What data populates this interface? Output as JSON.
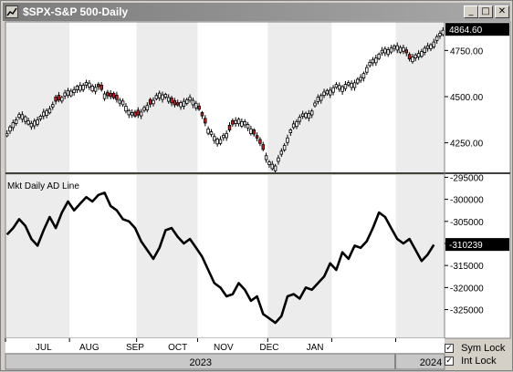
{
  "window": {
    "title": "$SPX-S&P 500-Daily",
    "icon": "chart-window-icon",
    "buttons": {
      "minimize": "_",
      "maximize": "□",
      "close": "✕"
    }
  },
  "colors": {
    "up_candle": "#ffffff",
    "down_candle": "#cc1f1f",
    "line": "#000000",
    "shade_band": "#dcdcdc",
    "plot_bg": "#ffffff",
    "axis_bg": "#ffffff"
  },
  "chart_data": [
    {
      "type": "candlestick",
      "series": [
        {
          "name": "$SPX-S&P 500-Daily"
        }
      ],
      "y_ticks": [
        "4250.00",
        "4500.00",
        "4750.00"
      ],
      "y_tick_values": [
        4250,
        4500,
        4750
      ],
      "ylim": [
        4090,
        4905
      ],
      "last_value_label": "4864.60",
      "last_value": 4864.6,
      "close_path": [
        [
          0,
          4300
        ],
        [
          2,
          4360
        ],
        [
          4,
          4400
        ],
        [
          6,
          4395
        ],
        [
          8,
          4350
        ],
        [
          10,
          4380
        ],
        [
          12,
          4410
        ],
        [
          14,
          4440
        ],
        [
          16,
          4470
        ],
        [
          18,
          4500
        ],
        [
          20,
          4530
        ],
        [
          22,
          4540
        ],
        [
          24,
          4560
        ],
        [
          26,
          4575
        ],
        [
          28,
          4560
        ],
        [
          30,
          4550
        ],
        [
          32,
          4520
        ],
        [
          34,
          4495
        ],
        [
          36,
          4490
        ],
        [
          38,
          4470
        ],
        [
          40,
          4430
        ],
        [
          42,
          4390
        ],
        [
          44,
          4420
        ],
        [
          46,
          4450
        ],
        [
          48,
          4480
        ],
        [
          50,
          4520
        ],
        [
          52,
          4510
        ],
        [
          54,
          4470
        ],
        [
          56,
          4450
        ],
        [
          58,
          4480
        ],
        [
          60,
          4490
        ],
        [
          62,
          4470
        ],
        [
          64,
          4390
        ],
        [
          66,
          4330
        ],
        [
          68,
          4280
        ],
        [
          70,
          4270
        ],
        [
          72,
          4300
        ],
        [
          74,
          4350
        ],
        [
          76,
          4380
        ],
        [
          78,
          4360
        ],
        [
          80,
          4330
        ],
        [
          82,
          4270
        ],
        [
          84,
          4220
        ],
        [
          86,
          4140
        ],
        [
          88,
          4130
        ],
        [
          90,
          4200
        ],
        [
          92,
          4280
        ],
        [
          94,
          4350
        ],
        [
          96,
          4390
        ],
        [
          98,
          4410
        ],
        [
          100,
          4420
        ],
        [
          102,
          4500
        ],
        [
          104,
          4520
        ],
        [
          106,
          4540
        ],
        [
          108,
          4560
        ],
        [
          110,
          4560
        ],
        [
          112,
          4570
        ],
        [
          114,
          4580
        ],
        [
          116,
          4600
        ],
        [
          118,
          4660
        ],
        [
          120,
          4700
        ],
        [
          122,
          4730
        ],
        [
          124,
          4760
        ],
        [
          126,
          4760
        ],
        [
          128,
          4780
        ],
        [
          130,
          4760
        ],
        [
          132,
          4710
        ],
        [
          134,
          4720
        ],
        [
          136,
          4750
        ],
        [
          138,
          4770
        ],
        [
          140,
          4800
        ],
        [
          142,
          4840
        ],
        [
          143,
          4865
        ]
      ],
      "red_bars": [
        16,
        17,
        30,
        31,
        33,
        34,
        35,
        36,
        42,
        43,
        47,
        54,
        55,
        56,
        63,
        64,
        65,
        73,
        74,
        81,
        82,
        83,
        84,
        131,
        132
      ]
    },
    {
      "type": "line",
      "title": "Mkt Daily AD Line",
      "series": [
        {
          "name": "Mkt Daily AD Line"
        }
      ],
      "y_ticks": [
        "-295000",
        "-300000",
        "-305000",
        "-310000",
        "-315000",
        "-320000",
        "-325000"
      ],
      "y_tick_values": [
        -295000,
        -300000,
        -305000,
        -310000,
        -315000,
        -320000,
        -325000
      ],
      "ylim": [
        -331500,
        -294500
      ],
      "last_value_label": "-310239",
      "last_value": -310239,
      "points": [
        [
          0,
          -308000
        ],
        [
          2,
          -306500
        ],
        [
          4,
          -304500
        ],
        [
          6,
          -306000
        ],
        [
          8,
          -309000
        ],
        [
          10,
          -310500
        ],
        [
          12,
          -307000
        ],
        [
          14,
          -304000
        ],
        [
          16,
          -306500
        ],
        [
          18,
          -303000
        ],
        [
          20,
          -300500
        ],
        [
          22,
          -302500
        ],
        [
          24,
          -301000
        ],
        [
          26,
          -299500
        ],
        [
          28,
          -300500
        ],
        [
          30,
          -299000
        ],
        [
          32,
          -298500
        ],
        [
          34,
          -301500
        ],
        [
          36,
          -302500
        ],
        [
          38,
          -304500
        ],
        [
          40,
          -305000
        ],
        [
          42,
          -306500
        ],
        [
          44,
          -309500
        ],
        [
          46,
          -311500
        ],
        [
          48,
          -313500
        ],
        [
          50,
          -311000
        ],
        [
          52,
          -307000
        ],
        [
          54,
          -306500
        ],
        [
          56,
          -308500
        ],
        [
          58,
          -310000
        ],
        [
          60,
          -309000
        ],
        [
          62,
          -311000
        ],
        [
          64,
          -313000
        ],
        [
          66,
          -316000
        ],
        [
          68,
          -319000
        ],
        [
          70,
          -320000
        ],
        [
          72,
          -322000
        ],
        [
          74,
          -321500
        ],
        [
          76,
          -319000
        ],
        [
          78,
          -320500
        ],
        [
          80,
          -323000
        ],
        [
          82,
          -322000
        ],
        [
          84,
          -326000
        ],
        [
          86,
          -327000
        ],
        [
          88,
          -328000
        ],
        [
          90,
          -326500
        ],
        [
          92,
          -322000
        ],
        [
          94,
          -321500
        ],
        [
          96,
          -322500
        ],
        [
          98,
          -320000
        ],
        [
          100,
          -320500
        ],
        [
          102,
          -319000
        ],
        [
          104,
          -317500
        ],
        [
          106,
          -314500
        ],
        [
          108,
          -316000
        ],
        [
          110,
          -312000
        ],
        [
          112,
          -313500
        ],
        [
          114,
          -310500
        ],
        [
          116,
          -311000
        ],
        [
          118,
          -309500
        ],
        [
          120,
          -306500
        ],
        [
          122,
          -303000
        ],
        [
          124,
          -304000
        ],
        [
          126,
          -306500
        ],
        [
          128,
          -309000
        ],
        [
          130,
          -310000
        ],
        [
          132,
          -309000
        ],
        [
          134,
          -311500
        ],
        [
          136,
          -314000
        ],
        [
          138,
          -312500
        ],
        [
          140,
          -310300
        ]
      ]
    }
  ],
  "x_axis": {
    "n_bars": 144,
    "month_labels": [
      "JUL",
      "AUG",
      "SEP",
      "OCT",
      "NOV",
      "DEC",
      "JAN"
    ],
    "month_label_bars": [
      12,
      27,
      42,
      56,
      71,
      86,
      101
    ],
    "month_start_bars": [
      0,
      21,
      43,
      63,
      86,
      107,
      128
    ],
    "shaded_month_start_bars": [
      0,
      43,
      86,
      128
    ],
    "month_end_bar": 144,
    "year_labels": [
      "2023",
      "2024"
    ],
    "year_start_bar": 128
  },
  "checkboxes": [
    {
      "label": "Sym Lock",
      "checked": true,
      "mark": "✓"
    },
    {
      "label": "Int Lock",
      "checked": true,
      "mark": "✓"
    }
  ]
}
